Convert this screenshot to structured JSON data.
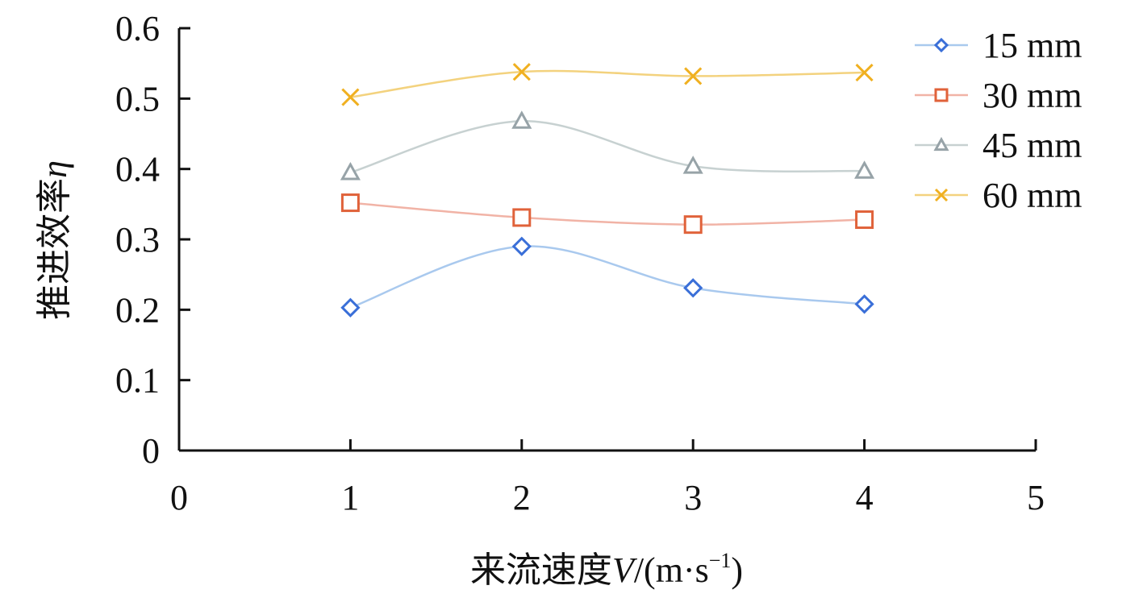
{
  "chart_data": {
    "type": "line",
    "xlabel": {
      "prefix": "来流速度",
      "var": "V",
      "unit_open": "/(m·s",
      "sup": "−1",
      "unit_close": ")"
    },
    "ylabel": {
      "prefix": "推进效率",
      "var": "η"
    },
    "xlim": [
      0,
      5
    ],
    "ylim": [
      0,
      0.6
    ],
    "xticks": [
      0,
      1,
      2,
      3,
      4,
      5
    ],
    "xtick_labels": [
      "0",
      "1",
      "2",
      "3",
      "4",
      "5"
    ],
    "yticks": [
      0,
      0.1,
      0.2,
      0.3,
      0.4,
      0.5,
      0.6
    ],
    "ytick_labels": [
      "0",
      "0.1",
      "0.2",
      "0.3",
      "0.4",
      "0.5",
      "0.6"
    ],
    "grid": false,
    "legend_position": "top-right",
    "smooth": true,
    "x": [
      1,
      2,
      3,
      4
    ],
    "series": [
      {
        "name": "15 mm",
        "values": [
          0.203,
          0.29,
          0.231,
          0.208
        ],
        "line_color": "#a9c9ee",
        "marker_color": "#3a6fd8",
        "marker": "diamond"
      },
      {
        "name": "30 mm",
        "values": [
          0.352,
          0.331,
          0.321,
          0.328
        ],
        "line_color": "#f1b3a6",
        "marker_color": "#e0623a",
        "marker": "square"
      },
      {
        "name": "45 mm",
        "values": [
          0.395,
          0.468,
          0.404,
          0.397
        ],
        "line_color": "#c7d1d1",
        "marker_color": "#97a3a8",
        "marker": "triangle"
      },
      {
        "name": "60 mm",
        "values": [
          0.502,
          0.538,
          0.532,
          0.537
        ],
        "line_color": "#f3d27e",
        "marker_color": "#f0b020",
        "marker": "cross"
      }
    ]
  }
}
